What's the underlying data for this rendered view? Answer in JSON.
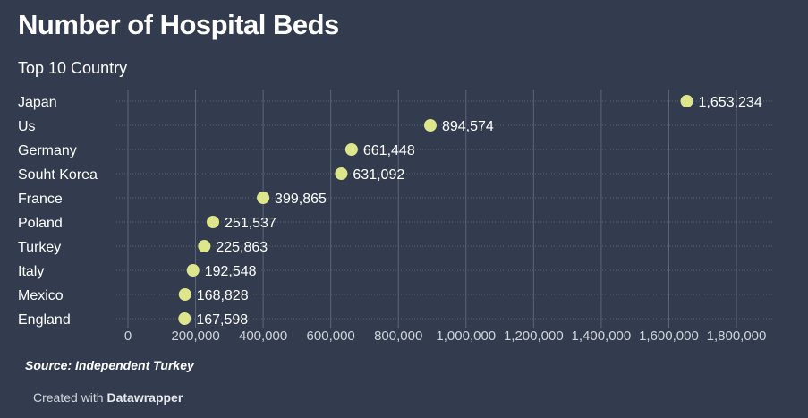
{
  "title": "Number of Hospital Beds",
  "subtitle": "Top 10 Country",
  "source": "Source: Independent Turkey",
  "credit": {
    "prefix": "Created with",
    "brand": "Datawrapper"
  },
  "colors": {
    "background": "#323c4e",
    "dot": "#dde68a",
    "gridline": "#5d6677",
    "text": "#ffffff",
    "tick_text": "#cfd3da"
  },
  "chart_data": {
    "type": "scatter",
    "categories": [
      "Japan",
      "Us",
      "Germany",
      "Souht Korea",
      "France",
      "Poland",
      "Turkey",
      "Italy",
      "Mexico",
      "England"
    ],
    "values": [
      1653234,
      894574,
      661448,
      631092,
      399865,
      251537,
      225863,
      192548,
      168828,
      167598
    ],
    "value_labels": [
      "1,653,234",
      "894,574",
      "661,448",
      "631,092",
      "399,865",
      "251,537",
      "225,863",
      "192,548",
      "168,828",
      "167,598"
    ],
    "xlim": [
      0,
      1800000
    ],
    "x_ticks": [
      0,
      200000,
      400000,
      600000,
      800000,
      1000000,
      1200000,
      1400000,
      1600000,
      1800000
    ],
    "x_tick_labels": [
      "0",
      "200,000",
      "400,000",
      "600,000",
      "800,000",
      "1,000,000",
      "1,200,000",
      "1,400,000",
      "1,600,000",
      "1,800,000"
    ],
    "grid": true,
    "title": "Number of Hospital Beds",
    "xlabel": "",
    "ylabel": ""
  }
}
